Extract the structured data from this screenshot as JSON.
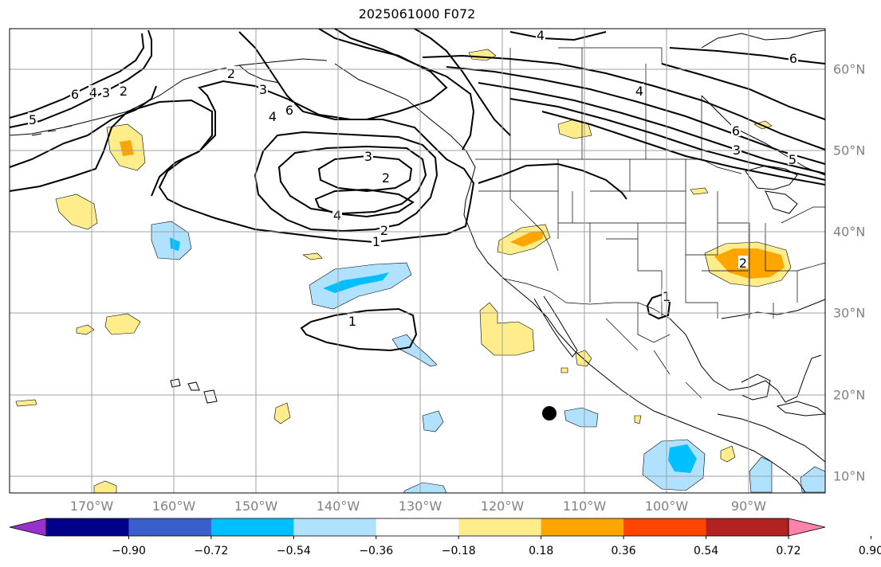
{
  "title": "2025061000 F072",
  "lat_labels": [
    "60°N",
    "50°N",
    "40°N",
    "30°N",
    "20°N",
    "10°N"
  ],
  "lon_labels": [
    "170°W",
    "160°W",
    "150°W",
    "140°W",
    "130°W",
    "120°W",
    "110°W",
    "100°W",
    "90°W"
  ],
  "colorbar": {
    "ticks": [
      "−0.90",
      "−0.72",
      "−0.54",
      "−0.36",
      "−0.18",
      "0.18",
      "0.36",
      "0.54",
      "0.72",
      "0.90"
    ],
    "colors": [
      "#9932cc",
      "#00008b",
      "#3a5fcd",
      "#00bfff",
      "#b0e2ff",
      "#ffffff",
      "#ffec8b",
      "#ffa500",
      "#ff4500",
      "#b22222",
      "#ff82ab"
    ]
  },
  "contour_labels": [
    {
      "text": "4"
    },
    {
      "text": "6"
    },
    {
      "text": "5"
    },
    {
      "text": "6"
    },
    {
      "text": "4"
    },
    {
      "text": "3"
    },
    {
      "text": "2"
    },
    {
      "text": "6"
    },
    {
      "text": "4"
    },
    {
      "text": "3"
    },
    {
      "text": "2"
    },
    {
      "text": "3"
    },
    {
      "text": "2"
    },
    {
      "text": "4"
    },
    {
      "text": "2"
    },
    {
      "text": "1"
    },
    {
      "text": "1"
    },
    {
      "text": "1"
    },
    {
      "text": "4"
    },
    {
      "text": "6"
    },
    {
      "text": "3"
    },
    {
      "text": "5"
    },
    {
      "text": "2"
    }
  ],
  "colors": {
    "contour": "#000000",
    "grid": "#a0a0a0",
    "light_blue": "#b0e2ff",
    "blue": "#00bfff",
    "yellow": "#ffec8b",
    "orange": "#ffa500"
  }
}
